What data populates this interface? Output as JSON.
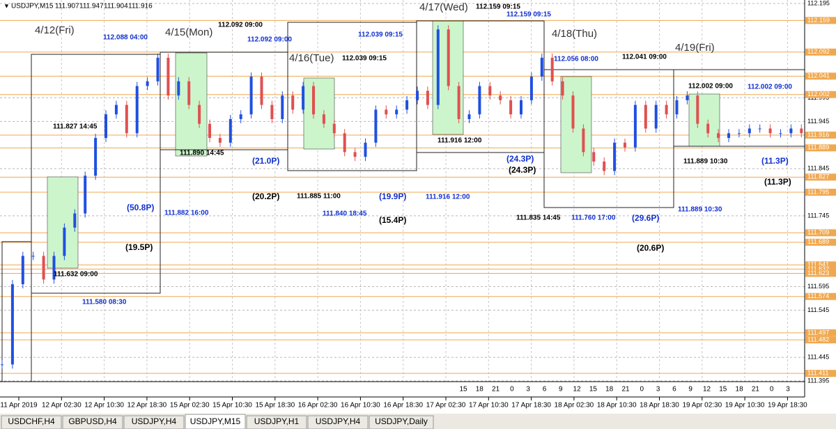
{
  "header": {
    "symbol": "USDJPY,M15",
    "ohlc": [
      "111.907",
      "111.947",
      "111.904",
      "111.916"
    ]
  },
  "price_ticks": [
    112.195,
    111.995,
    111.945,
    111.845,
    111.745,
    111.595,
    111.545,
    111.445,
    111.395
  ],
  "price_levels": [
    112.159,
    112.092,
    112.041,
    112.002,
    111.916,
    111.889,
    111.827,
    111.795,
    111.709,
    111.689,
    111.641,
    111.632,
    111.623,
    111.574,
    111.497,
    111.482,
    111.411
  ],
  "time_labels": [
    "11 Apr 2019",
    "12 Apr 02:30",
    "12 Apr 10:30",
    "12 Apr 18:30",
    "15 Apr 02:30",
    "15 Apr 10:30",
    "15 Apr 18:30",
    "16 Apr 02:30",
    "16 Apr 10:30",
    "16 Apr 18:30",
    "17 Apr 02:30",
    "17 Apr 10:30",
    "17 Apr 18:30",
    "18 Apr 02:30",
    "18 Apr 10:30",
    "18 Apr 18:30",
    "19 Apr 02:30",
    "19 Apr 10:30",
    "19 Apr 18:30"
  ],
  "hour_labels": [
    15,
    18,
    21,
    0,
    3,
    6,
    9,
    12,
    15,
    18,
    21,
    0,
    3,
    6,
    9,
    12,
    15,
    18,
    21,
    0,
    3
  ],
  "prices": [
    111.43,
    111.6,
    111.66,
    111.66,
    111.61,
    111.66,
    111.72,
    111.75,
    111.83,
    111.91,
    111.96,
    111.98,
    111.92,
    112.02,
    112.03,
    112.08,
    112.0,
    112.03,
    111.98,
    111.94,
    111.91,
    111.9,
    111.95,
    111.96,
    112.04,
    111.98,
    111.95,
    112.0,
    111.97,
    112.02,
    111.96,
    111.94,
    111.92,
    111.88,
    111.87,
    111.9,
    111.97,
    111.96,
    111.97,
    111.99,
    112.01,
    111.98,
    112.14,
    112.02,
    111.95,
    111.96,
    112.02,
    112.0,
    111.99,
    111.96,
    111.99,
    112.04,
    112.08,
    112.03,
    112.0,
    111.93,
    111.88,
    111.86,
    111.84,
    111.9,
    111.89,
    111.98,
    111.93,
    111.98,
    111.96,
    111.99,
    112.0,
    111.94,
    111.92,
    111.91,
    111.92,
    111.92,
    111.93,
    111.93,
    111.92,
    111.92,
    111.93,
    111.92
  ],
  "annotations": [
    {
      "text": "4/12(Fri)",
      "color": "#333333"
    },
    {
      "text": "112.088 04:00",
      "color": "#1030d0"
    },
    {
      "text": "4/15(Mon)",
      "color": "#333333"
    },
    {
      "text": "112.092 09:00",
      "color": "#000000"
    },
    {
      "text": "112.092 09:00",
      "color": "#1030d0"
    },
    {
      "text": "112.039 09:15",
      "color": "#1030d0"
    },
    {
      "text": "4/16(Tue)",
      "color": "#333333"
    },
    {
      "text": "112.039 09:15",
      "color": "#000000"
    },
    {
      "text": "4/17(Wed)",
      "color": "#333333"
    },
    {
      "text": "112.159 09:15",
      "color": "#000000"
    },
    {
      "text": "112.159 09:15",
      "color": "#1030d0"
    },
    {
      "text": "4/18(Thu)",
      "color": "#333333"
    },
    {
      "text": "112.056 08:00",
      "color": "#1030d0"
    },
    {
      "text": "112.041 09:00",
      "color": "#000000"
    },
    {
      "text": "4/19(Fri)",
      "color": "#333333"
    },
    {
      "text": "112.002 09:00",
      "color": "#000000"
    },
    {
      "text": "112.002 09:00",
      "color": "#1030d0"
    },
    {
      "text": "111.827 14:45",
      "color": "#000000"
    },
    {
      "text": "111.890 14:45",
      "color": "#000000"
    },
    {
      "text": "111.916 12:00",
      "color": "#000000"
    },
    {
      "text": "(21.0P)",
      "color": "#1030d0"
    },
    {
      "text": "(24.3P)",
      "color": "#1030d0"
    },
    {
      "text": "(24.3P)",
      "color": "#000000"
    },
    {
      "text": "111.889 10:30",
      "color": "#000000"
    },
    {
      "text": "(11.3P)",
      "color": "#1030d0"
    },
    {
      "text": "(11.3P)",
      "color": "#000000"
    },
    {
      "text": "(20.2P)",
      "color": "#000000"
    },
    {
      "text": "111.885 11:00",
      "color": "#000000"
    },
    {
      "text": "(19.9P)",
      "color": "#1030d0"
    },
    {
      "text": "111.916 12:00",
      "color": "#1030d0"
    },
    {
      "text": "(50.8P)",
      "color": "#1030d0"
    },
    {
      "text": "111.882 16:00",
      "color": "#1030d0"
    },
    {
      "text": "111.840 18:45",
      "color": "#1030d0"
    },
    {
      "text": "(15.4P)",
      "color": "#000000"
    },
    {
      "text": "111.835 14:45",
      "color": "#000000"
    },
    {
      "text": "111.760 17:00",
      "color": "#1030d0"
    },
    {
      "text": "(29.6P)",
      "color": "#1030d0"
    },
    {
      "text": "111.889 10:30",
      "color": "#1030d0"
    },
    {
      "text": "(19.5P)",
      "color": "#000000"
    },
    {
      "text": "(20.6P)",
      "color": "#000000"
    },
    {
      "text": "111.632 09:00",
      "color": "#000000"
    },
    {
      "text": "111.580 08:30",
      "color": "#1030d0"
    }
  ],
  "tabs": [
    "USDCHF,H4",
    "GBPUSD,H4",
    "USDJPY,H4",
    "USDJPY,M15",
    "USDJPY,H1",
    "USDJPY,H4",
    "USDJPY,Daily"
  ]
}
